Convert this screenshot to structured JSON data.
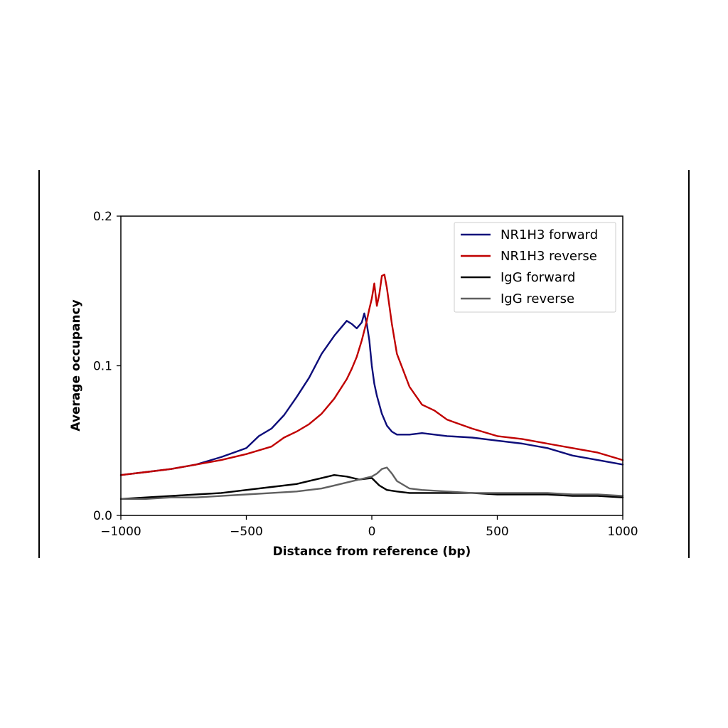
{
  "chart_data": {
    "type": "line",
    "title": "",
    "xlabel": "Distance from reference (bp)",
    "ylabel": "Average occupancy",
    "xlim": [
      -1000,
      1000
    ],
    "ylim": [
      0.0,
      0.2
    ],
    "xticks": [
      -1000,
      -500,
      0,
      500,
      1000
    ],
    "xtick_labels": [
      "−1000",
      "−500",
      "0",
      "500",
      "1000"
    ],
    "yticks": [
      0.0,
      0.1,
      0.2
    ],
    "ytick_labels": [
      "0.0",
      "0.1",
      "0.2"
    ],
    "grid": false,
    "legend_position": "top-right",
    "series": [
      {
        "name": "NR1H3 forward",
        "color": "#0d0d7a",
        "x": [
          -1000,
          -900,
          -800,
          -700,
          -600,
          -500,
          -450,
          -400,
          -350,
          -300,
          -250,
          -200,
          -150,
          -120,
          -100,
          -80,
          -60,
          -40,
          -30,
          -20,
          -10,
          0,
          10,
          20,
          40,
          60,
          80,
          100,
          150,
          200,
          250,
          300,
          400,
          500,
          600,
          700,
          800,
          900,
          1000
        ],
        "y": [
          0.027,
          0.029,
          0.031,
          0.034,
          0.039,
          0.045,
          0.053,
          0.058,
          0.067,
          0.079,
          0.092,
          0.108,
          0.12,
          0.126,
          0.13,
          0.128,
          0.125,
          0.129,
          0.135,
          0.128,
          0.117,
          0.1,
          0.088,
          0.08,
          0.068,
          0.06,
          0.056,
          0.054,
          0.054,
          0.055,
          0.054,
          0.053,
          0.052,
          0.05,
          0.048,
          0.045,
          0.04,
          0.037,
          0.034
        ]
      },
      {
        "name": "NR1H3 reverse",
        "color": "#c00000",
        "x": [
          -1000,
          -900,
          -800,
          -700,
          -600,
          -500,
          -400,
          -350,
          -300,
          -250,
          -200,
          -150,
          -100,
          -80,
          -60,
          -40,
          -20,
          -10,
          0,
          10,
          20,
          30,
          40,
          50,
          60,
          80,
          100,
          150,
          200,
          250,
          300,
          400,
          500,
          600,
          700,
          800,
          900,
          1000
        ],
        "y": [
          0.027,
          0.029,
          0.031,
          0.034,
          0.037,
          0.041,
          0.046,
          0.052,
          0.056,
          0.061,
          0.068,
          0.078,
          0.091,
          0.098,
          0.106,
          0.117,
          0.13,
          0.138,
          0.145,
          0.155,
          0.14,
          0.148,
          0.16,
          0.161,
          0.152,
          0.128,
          0.108,
          0.086,
          0.074,
          0.07,
          0.064,
          0.058,
          0.053,
          0.051,
          0.048,
          0.045,
          0.042,
          0.037
        ]
      },
      {
        "name": "IgG forward",
        "color": "#000000",
        "x": [
          -1000,
          -900,
          -800,
          -700,
          -600,
          -500,
          -400,
          -300,
          -250,
          -200,
          -150,
          -100,
          -50,
          0,
          30,
          60,
          100,
          150,
          200,
          300,
          400,
          500,
          600,
          700,
          800,
          900,
          1000
        ],
        "y": [
          0.011,
          0.012,
          0.013,
          0.014,
          0.015,
          0.017,
          0.019,
          0.021,
          0.023,
          0.025,
          0.027,
          0.026,
          0.024,
          0.025,
          0.02,
          0.017,
          0.016,
          0.015,
          0.015,
          0.015,
          0.015,
          0.014,
          0.014,
          0.014,
          0.013,
          0.013,
          0.012
        ]
      },
      {
        "name": "IgG reverse",
        "color": "#606060",
        "x": [
          -1000,
          -900,
          -800,
          -700,
          -600,
          -500,
          -400,
          -300,
          -250,
          -200,
          -150,
          -100,
          -50,
          0,
          20,
          40,
          60,
          80,
          100,
          150,
          200,
          300,
          400,
          500,
          600,
          700,
          800,
          900,
          1000
        ],
        "y": [
          0.011,
          0.011,
          0.012,
          0.012,
          0.013,
          0.014,
          0.015,
          0.016,
          0.017,
          0.018,
          0.02,
          0.022,
          0.024,
          0.026,
          0.028,
          0.031,
          0.032,
          0.028,
          0.023,
          0.018,
          0.017,
          0.016,
          0.015,
          0.015,
          0.015,
          0.015,
          0.014,
          0.014,
          0.013
        ]
      }
    ]
  }
}
